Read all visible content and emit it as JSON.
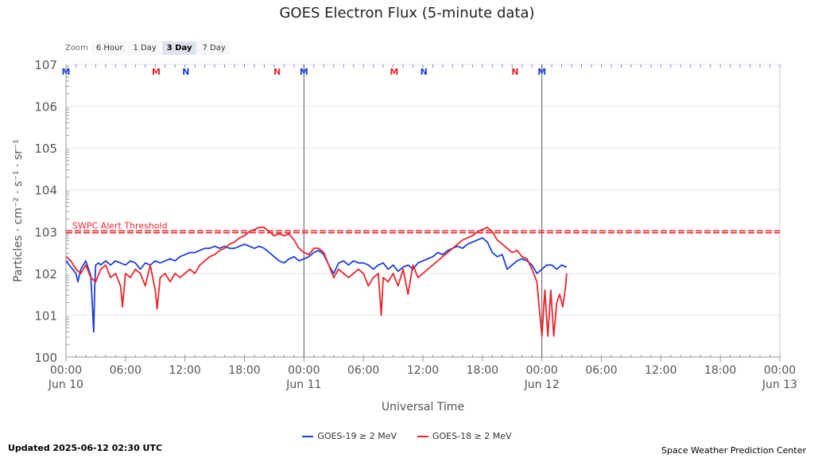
{
  "title": "GOES Electron Flux (5-minute data)",
  "zoom": {
    "label": "Zoom",
    "buttons": [
      "6 Hour",
      "1 Day",
      "3 Day",
      "7 Day"
    ],
    "active": "3 Day"
  },
  "footer": {
    "updated": "Updated 2025-06-12 02:30 UTC",
    "credit": "Space Weather Prediction Center"
  },
  "chart_data": {
    "type": "line",
    "title": "GOES Electron Flux (5-minute data)",
    "xlabel": "Universal Time",
    "ylabel": "Particles · cm⁻² · s⁻¹ · sr⁻¹",
    "y_scale": "log",
    "ylim": [
      0,
      7
    ],
    "y_ticks": [
      {
        "exp": 0,
        "base": "10",
        "sup": "0"
      },
      {
        "exp": 1,
        "base": "10",
        "sup": "1"
      },
      {
        "exp": 2,
        "base": "10",
        "sup": "2"
      },
      {
        "exp": 3,
        "base": "10",
        "sup": "3"
      },
      {
        "exp": 4,
        "base": "10",
        "sup": "4"
      },
      {
        "exp": 5,
        "base": "10",
        "sup": "5"
      },
      {
        "exp": 6,
        "base": "10",
        "sup": "6"
      },
      {
        "exp": 7,
        "base": "10",
        "sup": "7"
      }
    ],
    "x_unit": "hours since 2025-06-10 00:00 UTC",
    "xlim": [
      0,
      72
    ],
    "x_ticks": [
      {
        "h": 0,
        "time": "00:00",
        "date": "Jun 10"
      },
      {
        "h": 6,
        "time": "06:00",
        "date": ""
      },
      {
        "h": 12,
        "time": "12:00",
        "date": ""
      },
      {
        "h": 18,
        "time": "18:00",
        "date": ""
      },
      {
        "h": 24,
        "time": "00:00",
        "date": "Jun 11"
      },
      {
        "h": 30,
        "time": "06:00",
        "date": ""
      },
      {
        "h": 36,
        "time": "12:00",
        "date": ""
      },
      {
        "h": 42,
        "time": "18:00",
        "date": ""
      },
      {
        "h": 48,
        "time": "00:00",
        "date": "Jun 12"
      },
      {
        "h": 54,
        "time": "06:00",
        "date": ""
      },
      {
        "h": 60,
        "time": "12:00",
        "date": ""
      },
      {
        "h": 66,
        "time": "18:00",
        "date": ""
      },
      {
        "h": 72,
        "time": "00:00",
        "date": "Jun 13"
      }
    ],
    "threshold": {
      "label": "SWPC Alert Threshold",
      "value_exp": 3.0,
      "color": "#e8262d"
    },
    "day_markers": [
      24,
      48
    ],
    "mn_markers": [
      {
        "h": 0,
        "label": "M",
        "color": "#1f3fd6"
      },
      {
        "h": 9.1,
        "label": "M",
        "color": "#e8262d"
      },
      {
        "h": 12.1,
        "label": "N",
        "color": "#1f3fd6"
      },
      {
        "h": 21.3,
        "label": "N",
        "color": "#e8262d"
      },
      {
        "h": 24,
        "label": "M",
        "color": "#1f3fd6"
      },
      {
        "h": 33.1,
        "label": "M",
        "color": "#e8262d"
      },
      {
        "h": 36.1,
        "label": "N",
        "color": "#1f3fd6"
      },
      {
        "h": 45.3,
        "label": "N",
        "color": "#e8262d"
      },
      {
        "h": 48,
        "label": "M",
        "color": "#1f3fd6"
      }
    ],
    "series": [
      {
        "name": "GOES-19 ≥ 2 MeV",
        "color": "#1f3fd6",
        "x": [
          0,
          0.5,
          1.0,
          1.2,
          1.5,
          2.0,
          2.5,
          2.8,
          2.9,
          3.0,
          3.3,
          3.5,
          4.0,
          4.5,
          5.0,
          5.5,
          6.0,
          6.5,
          7.0,
          7.5,
          8.0,
          8.5,
          9.0,
          9.5,
          10.0,
          10.5,
          11.0,
          11.5,
          12.0,
          12.5,
          13.0,
          13.5,
          14.0,
          14.5,
          15.0,
          15.5,
          16.0,
          16.5,
          17.0,
          17.5,
          18.0,
          18.5,
          19.0,
          19.5,
          20.0,
          20.5,
          21.0,
          21.5,
          22.0,
          22.5,
          23.0,
          23.5,
          24.0,
          24.5,
          25.0,
          25.5,
          26.0,
          26.5,
          27.0,
          27.5,
          28.0,
          28.5,
          29.0,
          29.5,
          30.0,
          30.5,
          31.0,
          31.5,
          32.0,
          32.5,
          33.0,
          33.5,
          34.0,
          34.5,
          35.0,
          35.5,
          36.0,
          36.5,
          37.0,
          37.5,
          38.0,
          38.5,
          39.0,
          39.5,
          40.0,
          40.5,
          41.0,
          41.5,
          42.0,
          42.5,
          43.0,
          43.5,
          44.0,
          44.5,
          45.0,
          45.5,
          46.0,
          46.5,
          47.0,
          47.5,
          48.0,
          48.5,
          49.0,
          49.5,
          50.0,
          50.5
        ],
        "y": [
          2.3,
          2.15,
          2.0,
          1.8,
          2.1,
          2.3,
          1.95,
          0.6,
          1.7,
          2.2,
          2.25,
          2.2,
          2.3,
          2.2,
          2.3,
          2.25,
          2.2,
          2.3,
          2.25,
          2.1,
          2.25,
          2.2,
          2.3,
          2.25,
          2.3,
          2.35,
          2.3,
          2.4,
          2.45,
          2.5,
          2.5,
          2.55,
          2.6,
          2.6,
          2.65,
          2.6,
          2.65,
          2.6,
          2.6,
          2.65,
          2.7,
          2.65,
          2.6,
          2.65,
          2.6,
          2.5,
          2.4,
          2.3,
          2.25,
          2.35,
          2.4,
          2.3,
          2.35,
          2.4,
          2.5,
          2.55,
          2.45,
          2.2,
          2.0,
          2.25,
          2.3,
          2.2,
          2.3,
          2.25,
          2.25,
          2.2,
          2.1,
          2.2,
          2.25,
          2.1,
          2.2,
          2.05,
          2.15,
          2.2,
          2.1,
          2.25,
          2.3,
          2.35,
          2.4,
          2.5,
          2.45,
          2.55,
          2.6,
          2.65,
          2.6,
          2.7,
          2.75,
          2.8,
          2.85,
          2.75,
          2.5,
          2.4,
          2.45,
          2.1,
          2.2,
          2.3,
          2.35,
          2.3,
          2.2,
          2.0,
          2.1,
          2.2,
          2.2,
          2.1,
          2.2,
          2.15
        ]
      },
      {
        "name": "GOES-18 ≥ 2 MeV",
        "color": "#e8262d",
        "x": [
          0,
          0.5,
          1.0,
          1.5,
          2.0,
          2.5,
          3.0,
          3.5,
          4.0,
          4.5,
          5.0,
          5.5,
          5.7,
          6.0,
          6.5,
          7.0,
          7.5,
          8.0,
          8.5,
          9.0,
          9.2,
          9.5,
          10.0,
          10.5,
          11.0,
          11.5,
          12.0,
          12.5,
          13.0,
          13.5,
          14.0,
          14.5,
          15.0,
          15.5,
          16.0,
          16.5,
          17.0,
          17.5,
          18.0,
          18.5,
          19.0,
          19.5,
          20.0,
          20.5,
          21.0,
          21.5,
          22.0,
          22.5,
          23.0,
          23.5,
          24.0,
          24.5,
          25.0,
          25.5,
          26.0,
          26.5,
          27.0,
          27.5,
          28.0,
          28.5,
          29.0,
          29.5,
          30.0,
          30.5,
          31.0,
          31.5,
          31.8,
          32.0,
          32.5,
          33.0,
          33.5,
          34.0,
          34.5,
          35.0,
          35.5,
          36.0,
          36.5,
          37.0,
          37.5,
          38.0,
          38.5,
          39.0,
          39.5,
          40.0,
          40.5,
          41.0,
          41.5,
          42.0,
          42.5,
          43.0,
          43.5,
          44.0,
          44.5,
          45.0,
          45.5,
          46.0,
          46.5,
          47.0,
          47.5,
          47.8,
          48.0,
          48.3,
          48.6,
          48.9,
          49.2,
          49.5,
          49.8,
          50.1,
          50.4,
          50.5
        ],
        "y": [
          2.4,
          2.3,
          2.1,
          2.0,
          2.2,
          1.9,
          1.8,
          2.1,
          2.2,
          1.9,
          2.0,
          1.7,
          1.2,
          2.0,
          1.9,
          2.1,
          2.0,
          1.7,
          2.2,
          1.6,
          1.15,
          1.9,
          2.0,
          1.8,
          2.0,
          1.9,
          2.0,
          2.1,
          2.0,
          2.2,
          2.3,
          2.4,
          2.45,
          2.55,
          2.6,
          2.7,
          2.75,
          2.85,
          2.9,
          3.0,
          3.05,
          3.1,
          3.1,
          3.0,
          2.9,
          2.95,
          2.9,
          2.95,
          2.8,
          2.6,
          2.5,
          2.45,
          2.6,
          2.6,
          2.5,
          2.2,
          1.9,
          2.1,
          2.0,
          1.9,
          2.0,
          2.1,
          2.0,
          1.7,
          1.9,
          2.0,
          1.0,
          1.9,
          1.8,
          2.0,
          1.7,
          2.1,
          1.5,
          2.2,
          1.9,
          2.0,
          2.1,
          2.2,
          2.3,
          2.4,
          2.5,
          2.6,
          2.7,
          2.8,
          2.85,
          2.9,
          3.0,
          3.05,
          3.1,
          3.0,
          2.8,
          2.7,
          2.6,
          2.5,
          2.55,
          2.4,
          2.35,
          2.1,
          1.8,
          1.0,
          0.5,
          1.6,
          0.5,
          1.6,
          0.5,
          1.3,
          1.5,
          1.2,
          1.7,
          2.0
        ]
      }
    ]
  }
}
